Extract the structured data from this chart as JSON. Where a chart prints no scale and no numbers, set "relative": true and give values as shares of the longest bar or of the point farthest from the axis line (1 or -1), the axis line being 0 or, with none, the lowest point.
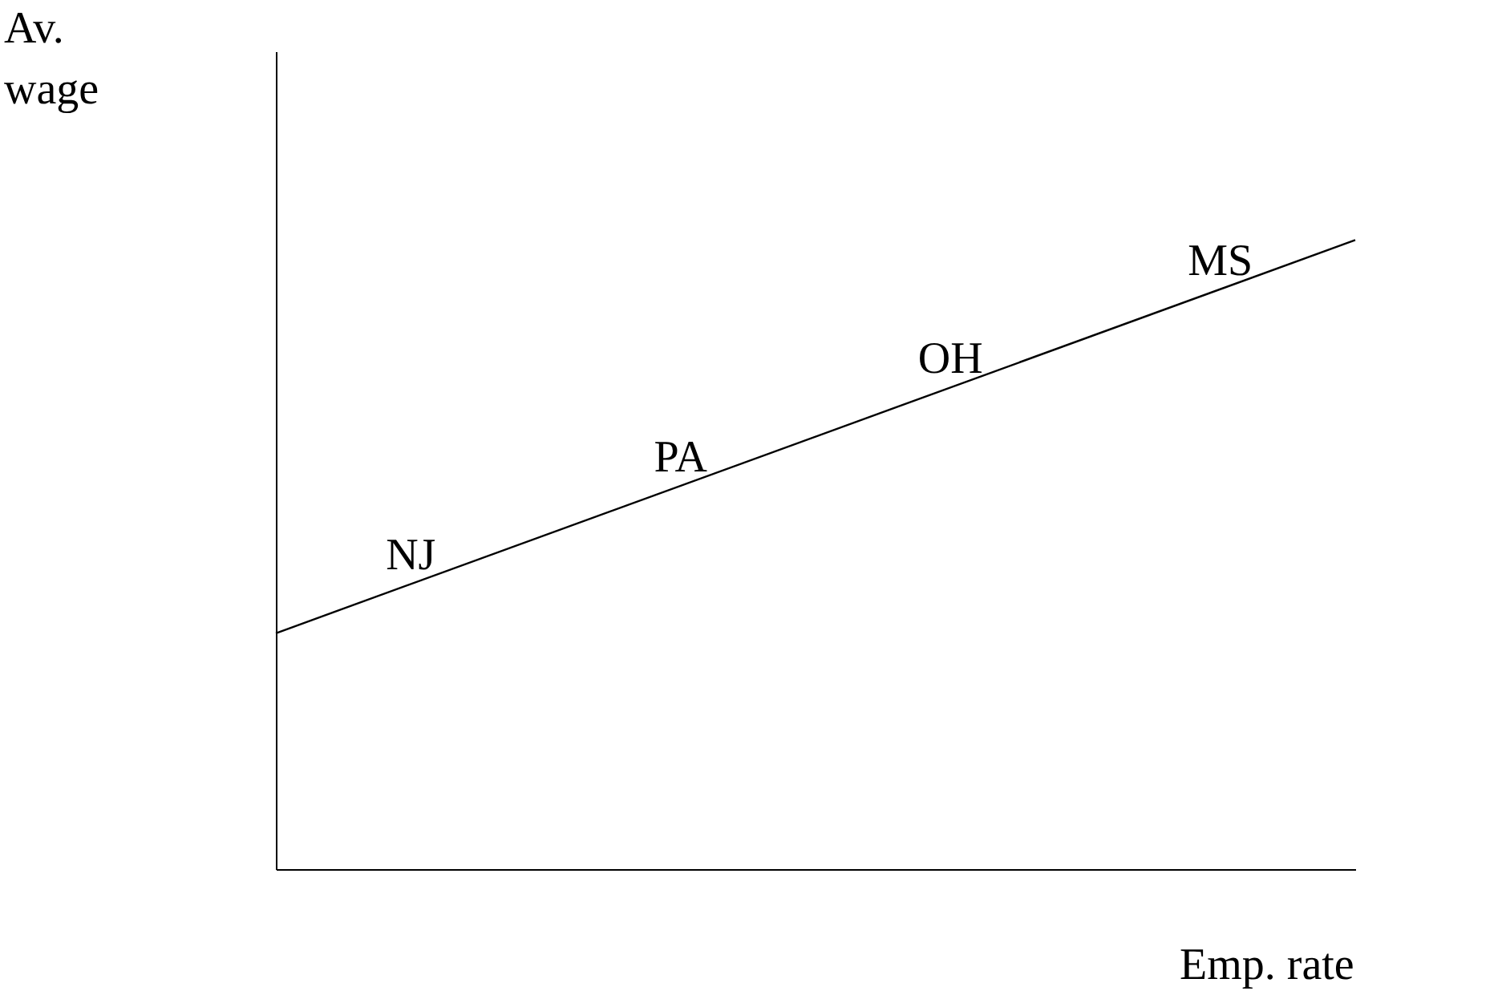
{
  "chart_data": {
    "type": "line",
    "relative": true,
    "categories": [
      null,
      null
    ],
    "values": [
      0.375,
      1
    ],
    "color": "#000000",
    "xlabel": "Emp. rate",
    "ylabel": "Av. wage",
    "annotations": [
      "NJ",
      "PA",
      "OH",
      "MS"
    ],
    "grid": false,
    "tick_labels": false,
    "marker": "none",
    "line_style": "solid"
  }
}
